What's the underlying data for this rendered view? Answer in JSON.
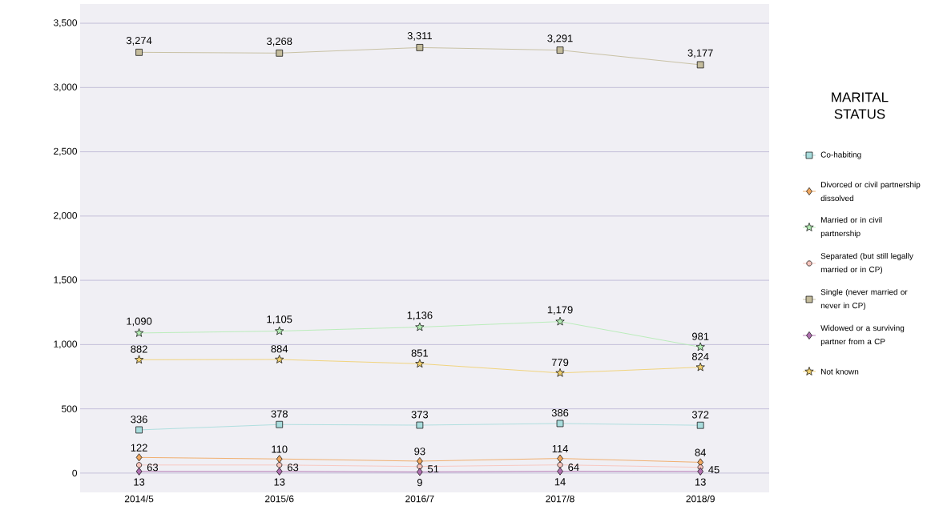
{
  "chart_data": {
    "type": "line",
    "legend_title": "MARITAL STATUS",
    "categories": [
      "2014/5",
      "2015/6",
      "2016/7",
      "2017/8",
      "2018/9"
    ],
    "ylim": [
      -150,
      3650
    ],
    "yticks": [
      {
        "value": 0,
        "label": "0"
      },
      {
        "value": 500,
        "label": "500"
      },
      {
        "value": 1000,
        "label": "1,000"
      },
      {
        "value": 1500,
        "label": "1,500"
      },
      {
        "value": 2000,
        "label": "2,000"
      },
      {
        "value": 2500,
        "label": "2,500"
      },
      {
        "value": 3000,
        "label": "3,000"
      },
      {
        "value": 3500,
        "label": "3,500"
      }
    ],
    "grid": "y",
    "legend": "right",
    "series": [
      {
        "name": "Co-habiting",
        "color": "#a8dcdc",
        "marker": "square",
        "values": [
          336,
          378,
          373,
          386,
          372
        ],
        "value_labels": [
          "336",
          "378",
          "373",
          "386",
          "372"
        ]
      },
      {
        "name": "Divorced or civil partnership dissolved",
        "color": "#f0a860",
        "marker": "diamond",
        "values": [
          122,
          110,
          93,
          114,
          84
        ],
        "value_labels": [
          "122",
          "110",
          "93",
          "114",
          "84"
        ]
      },
      {
        "name": "Married or in civil partnership",
        "color": "#b4ecb4",
        "marker": "star",
        "values": [
          1090,
          1105,
          1136,
          1179,
          981
        ],
        "value_labels": [
          "1,090",
          "1,105",
          "1,136",
          "1,179",
          "981"
        ]
      },
      {
        "name": "Separated (but still legally married or in CP)",
        "color": "#f8c4bc",
        "marker": "circle",
        "values": [
          63,
          63,
          51,
          64,
          45
        ],
        "value_labels": [
          "63",
          "63",
          "51",
          "64",
          "45"
        ]
      },
      {
        "name": "Single (never married or never in CP)",
        "color": "#c4bc9c",
        "marker": "square",
        "values": [
          3274,
          3268,
          3311,
          3291,
          3177
        ],
        "value_labels": [
          "3,274",
          "3,268",
          "3,311",
          "3,291",
          "3,177"
        ]
      },
      {
        "name": "Widowed or a surviving partner from a CP",
        "color": "#b070b0",
        "marker": "diamond",
        "values": [
          13,
          13,
          9,
          14,
          13
        ],
        "value_labels": [
          "13",
          "13",
          "9",
          "14",
          "13"
        ]
      },
      {
        "name": "Not known",
        "color": "#f0d070",
        "marker": "star",
        "values": [
          882,
          884,
          851,
          779,
          824
        ],
        "value_labels": [
          "882",
          "884",
          "851",
          "779",
          "824"
        ]
      }
    ]
  }
}
